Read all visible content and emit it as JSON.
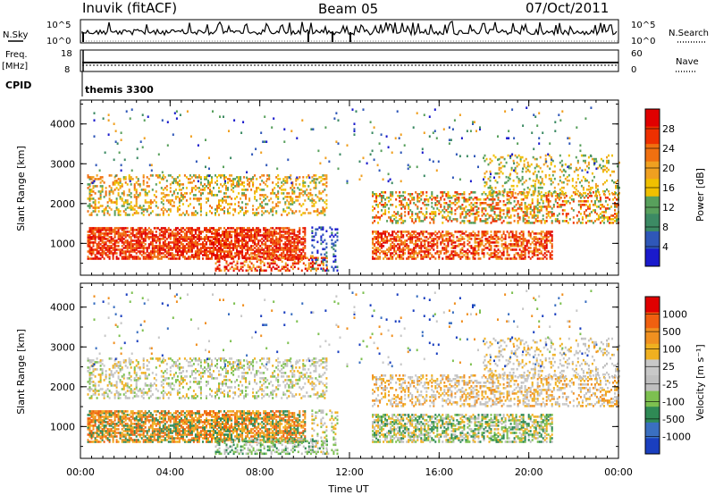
{
  "header": {
    "station": "Inuvik (fitACF)",
    "beam": "Beam 05",
    "date": "07/Oct/2011"
  },
  "noise_panel": {
    "left_label": "N.Sky",
    "right_label": "N.Search",
    "left_ticks": [
      "10^5",
      "10^0"
    ],
    "right_ticks": [
      "10^5",
      "10^0"
    ]
  },
  "freq_panel": {
    "left_label_1": "Freq.",
    "left_label_2": "[MHz]",
    "right_label": "Nave",
    "left_ticks": [
      "18",
      "8"
    ],
    "right_ticks": [
      "60",
      "0"
    ]
  },
  "cpid_panel": {
    "label": "CPID",
    "value": "themis 3300"
  },
  "colors": {
    "power_scale": [
      "#1a1acc",
      "#2f57b8",
      "#3c8a64",
      "#58a05c",
      "#f0c000",
      "#f0a020",
      "#f07010",
      "#ee3000",
      "#e00000"
    ],
    "velocity_scale": [
      "#1a3fbf",
      "#3a6fc0",
      "#2f8a55",
      "#7dc050",
      "#bfbfbf",
      "#c8c8c8",
      "#f0b020",
      "#f09020",
      "#f06010",
      "#e00000"
    ]
  },
  "chart_data": [
    {
      "type": "heatmap",
      "quantity": "power",
      "ylabel": "Slant Range [km]",
      "xlabel": "",
      "x_ticks": [
        "00:00",
        "04:00",
        "08:00",
        "12:00",
        "16:00",
        "20:00",
        "00:00"
      ],
      "y_ticks": [
        1000,
        2000,
        3000,
        4000
      ],
      "ylim": [
        200,
        4600
      ],
      "colorbar_label": "Power [dB]",
      "colorbar_ticks": [
        "4",
        "8",
        "12",
        "16",
        "20",
        "24",
        "28"
      ]
    },
    {
      "type": "heatmap",
      "quantity": "velocity",
      "ylabel": "Slant Range [km]",
      "xlabel": "Time UT",
      "x_ticks": [
        "00:00",
        "04:00",
        "08:00",
        "12:00",
        "16:00",
        "20:00",
        "00:00"
      ],
      "y_ticks": [
        1000,
        2000,
        3000,
        4000
      ],
      "ylim": [
        200,
        4600
      ],
      "colorbar_label": "Velocity [m s⁻¹]",
      "colorbar_ticks": [
        "1000",
        "500",
        "100",
        "25",
        "-25",
        "-100",
        "-500",
        "-1000"
      ]
    }
  ]
}
